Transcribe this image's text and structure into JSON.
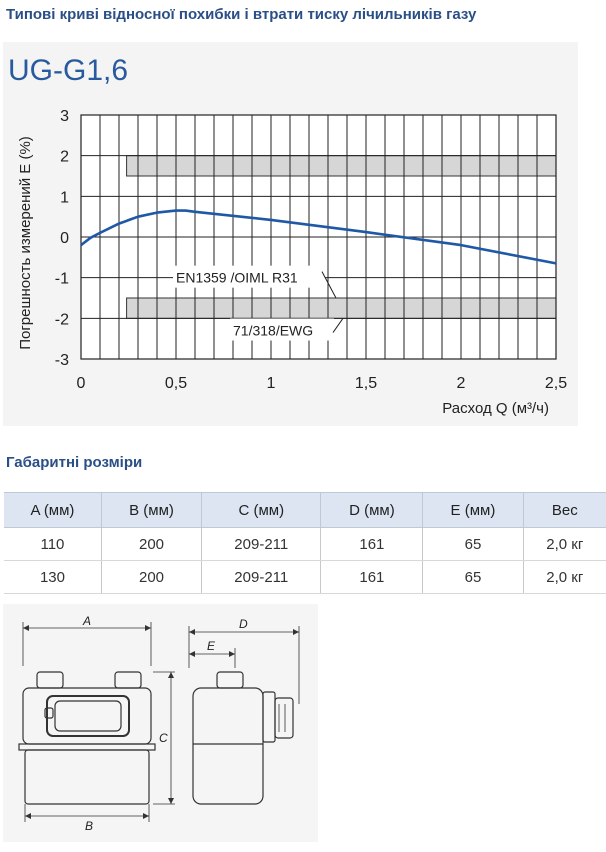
{
  "curves_section": {
    "title": "Типові криві відносної похибки і втрати тиску лічильників газу"
  },
  "chart_data": {
    "type": "line",
    "title": "UG-G1,6",
    "ylabel": "Погрешность измерений E (%)",
    "xlabel": "Расход Q (м³/ч)",
    "xlim": [
      0,
      2.5
    ],
    "ylim": [
      -3,
      3
    ],
    "x_ticks": [
      0,
      0.5,
      1,
      1.5,
      2,
      2.5
    ],
    "x_tick_labels": [
      "0",
      "0,5",
      "1",
      "1,5",
      "2",
      "2,5"
    ],
    "y_ticks": [
      3,
      2,
      1,
      0,
      -1,
      -2,
      -3
    ],
    "y_tick_labels": [
      "3",
      "2",
      "1",
      "0",
      "-1",
      "-2",
      "-3"
    ],
    "grid": true,
    "series": [
      {
        "x": [
          0,
          0.05,
          0.1,
          0.2,
          0.3,
          0.4,
          0.5,
          0.55,
          0.6,
          1.0,
          1.5,
          2.0,
          2.5
        ],
        "y": [
          -0.2,
          -0.02,
          0.1,
          0.33,
          0.5,
          0.6,
          0.65,
          0.65,
          0.62,
          0.42,
          0.12,
          -0.2,
          -0.65
        ],
        "color": "#1f58a6"
      }
    ],
    "bands": [
      {
        "x": [
          0.24,
          2.5
        ],
        "y": [
          1.5,
          2.0
        ],
        "color": "#d6d6d6"
      },
      {
        "x": [
          0.24,
          2.5
        ],
        "y": [
          -2.0,
          -1.5
        ],
        "color": "#d6d6d6"
      }
    ],
    "annotations": [
      {
        "text": "EN1359 /OIML R31",
        "x": 0.5,
        "y": -1.0
      },
      {
        "text": "71/318/EWG",
        "x": 0.8,
        "y": -2.3
      }
    ]
  },
  "dimensions_section": {
    "title": "Габаритні розміри",
    "headers": [
      "A (мм)",
      "B (мм)",
      "C (мм)",
      "D (мм)",
      "E (мм)",
      "Вес"
    ],
    "rows": [
      [
        "110",
        "200",
        "209-211",
        "161",
        "65",
        "2,0 кг"
      ],
      [
        "130",
        "200",
        "209-211",
        "161",
        "65",
        "2,0 кг"
      ]
    ]
  },
  "drawing": {
    "labels": {
      "a": "A",
      "b": "B",
      "c": "C",
      "d": "D",
      "e": "E"
    }
  }
}
